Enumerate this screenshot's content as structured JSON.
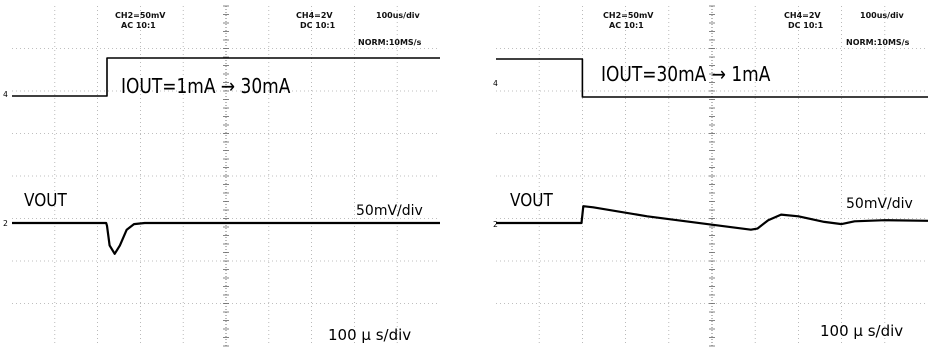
{
  "scopes": [
    {
      "ch2_setting": "CH2=50mV",
      "ch2_coupling": "AC 10:1",
      "ch4_setting": "CH4=2V",
      "ch4_coupling": "DC 10:1",
      "timebase": "100us/div",
      "trigger_mode": "NORM:10MS/s",
      "step_label": "IOUT=1mA → 30mA",
      "vout_label": "VOUT",
      "vout_scale": "50mV/div",
      "time_scale": "100 μ s/div",
      "ch4_ground_marker": "4",
      "ch2_ground_marker": "2"
    },
    {
      "ch2_setting": "CH2=50mV",
      "ch2_coupling": "AC 10:1",
      "ch4_setting": "CH4=2V",
      "ch4_coupling": "DC 10:1",
      "timebase": "100us/div",
      "trigger_mode": "NORM:10MS/s",
      "step_label": "IOUT=30mA → 1mA",
      "vout_label": "VOUT",
      "vout_scale": "50mV/div",
      "time_scale": "100 μ s/div",
      "ch4_ground_marker": "4",
      "ch2_ground_marker": "2"
    }
  ],
  "chart_data": [
    {
      "type": "line",
      "grid": true,
      "x_divisions": 10,
      "y_divisions": 8,
      "x_unit_per_div": "100us",
      "x_range_us": [
        0,
        1000
      ],
      "series": [
        {
          "channel": "CH4",
          "unit_per_div": "2V",
          "points": [
            [
              0,
              0
            ],
            [
              222,
              0
            ],
            [
              222,
              5
            ],
            [
              1000,
              5
            ]
          ]
        },
        {
          "channel": "CH2",
          "unit_per_div": "50mV",
          "points": [
            [
              0,
              0
            ],
            [
              220,
              0
            ],
            [
              222,
              -5
            ],
            [
              228,
              -40
            ],
            [
              240,
              -55
            ],
            [
              252,
              -40
            ],
            [
              268,
              -12
            ],
            [
              285,
              -2
            ],
            [
              310,
              0
            ],
            [
              1000,
              0
            ]
          ]
        }
      ]
    },
    {
      "type": "line",
      "grid": true,
      "x_divisions": 10,
      "y_divisions": 8,
      "x_unit_per_div": "100us",
      "x_range_us": [
        0,
        1000
      ],
      "series": [
        {
          "channel": "CH4",
          "unit_per_div": "2V",
          "points": [
            [
              0,
              5
            ],
            [
              200,
              5
            ],
            [
              200,
              0
            ],
            [
              1000,
              0
            ]
          ]
        },
        {
          "channel": "CH2",
          "unit_per_div": "50mV",
          "points": [
            [
              0,
              0
            ],
            [
              198,
              0
            ],
            [
              202,
              30
            ],
            [
              225,
              28
            ],
            [
              350,
              12
            ],
            [
              500,
              -3
            ],
            [
              590,
              -12
            ],
            [
              605,
              -10
            ],
            [
              630,
              5
            ],
            [
              660,
              15
            ],
            [
              700,
              12
            ],
            [
              760,
              2
            ],
            [
              800,
              -2
            ],
            [
              830,
              3
            ],
            [
              900,
              5
            ],
            [
              1000,
              4
            ]
          ]
        }
      ]
    }
  ]
}
